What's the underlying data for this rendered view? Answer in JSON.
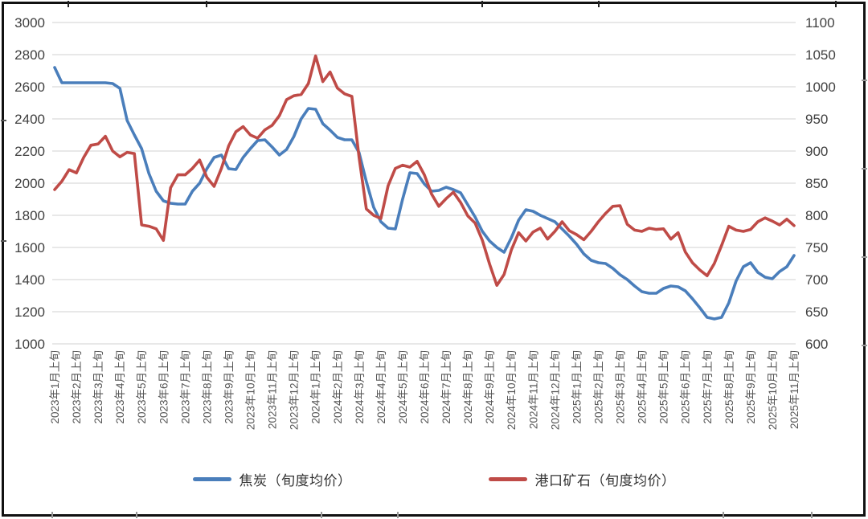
{
  "chart_data": {
    "type": "line",
    "title": "",
    "grid": "horizontal",
    "legend_position": "bottom",
    "points_per_label": 3,
    "x_labels": [
      "2023年1月上旬",
      "2023年2月上旬",
      "2023年3月上旬",
      "2023年4月上旬",
      "2023年5月上旬",
      "2023年6月上旬",
      "2023年7月上旬",
      "2023年8月上旬",
      "2023年9月上旬",
      "2023年10月上旬",
      "2023年11月上旬",
      "2023年12月上旬",
      "2024年1月上旬",
      "2024年2月上旬",
      "2024年3月上旬",
      "2024年4月上旬",
      "2024年5月上旬",
      "2024年6月上旬",
      "2024年7月上旬",
      "2024年8月上旬",
      "2024年9月上旬",
      "2024年10月上旬",
      "2024年11月上旬",
      "2024年12月上旬",
      "2025年1月上旬",
      "2025年2月上旬",
      "2025年3月上旬",
      "2025年4月上旬",
      "2025年5月上旬",
      "2025年6月上旬",
      "2025年7月上旬",
      "2025年8月上旬",
      "2025年9月上旬",
      "2025年10月上旬",
      "2025年11月上旬"
    ],
    "left_axis": {
      "min": 1000,
      "max": 3000,
      "step": 200,
      "ticks": [
        "3000",
        "2800",
        "2600",
        "2400",
        "2200",
        "2000",
        "1800",
        "1600",
        "1400",
        "1200",
        "1000"
      ]
    },
    "right_axis": {
      "min": 600,
      "max": 1100,
      "step": 50,
      "ticks": [
        "1100",
        "1050",
        "1000",
        "950",
        "900",
        "850",
        "800",
        "750",
        "700",
        "650",
        "600"
      ]
    },
    "series": [
      {
        "name": "焦炭（旬度均价）",
        "axis": "left",
        "color": "#4a7ebb",
        "values": [
          2720,
          2625,
          2625,
          2625,
          2625,
          2625,
          2625,
          2625,
          2620,
          2590,
          2390,
          2300,
          2215,
          2060,
          1950,
          1890,
          1875,
          1870,
          1870,
          1950,
          2000,
          2090,
          2160,
          2175,
          2090,
          2085,
          2160,
          2215,
          2265,
          2270,
          2225,
          2175,
          2210,
          2290,
          2400,
          2465,
          2460,
          2370,
          2330,
          2285,
          2270,
          2270,
          2190,
          2010,
          1850,
          1760,
          1720,
          1715,
          1900,
          2065,
          2060,
          1995,
          1950,
          1955,
          1975,
          1960,
          1940,
          1865,
          1790,
          1700,
          1640,
          1600,
          1570,
          1660,
          1770,
          1835,
          1825,
          1800,
          1780,
          1760,
          1715,
          1670,
          1620,
          1560,
          1520,
          1505,
          1500,
          1470,
          1430,
          1400,
          1360,
          1325,
          1315,
          1315,
          1345,
          1360,
          1355,
          1330,
          1280,
          1225,
          1165,
          1155,
          1165,
          1255,
          1390,
          1480,
          1505,
          1445,
          1415,
          1405,
          1450,
          1480,
          1550
        ]
      },
      {
        "name": "港口矿石（旬度均价）",
        "axis": "right",
        "color": "#bf4b47",
        "values": [
          840,
          853,
          871,
          866,
          890,
          909,
          911,
          923,
          900,
          891,
          898,
          896,
          785,
          783,
          779,
          761,
          843,
          863,
          863,
          873,
          886,
          859,
          845,
          873,
          908,
          930,
          938,
          925,
          920,
          933,
          940,
          955,
          980,
          986,
          988,
          1005,
          1048,
          1008,
          1023,
          998,
          989,
          985,
          890,
          810,
          800,
          795,
          846,
          873,
          878,
          875,
          884,
          863,
          833,
          814,
          826,
          836,
          820,
          799,
          788,
          761,
          724,
          691,
          708,
          746,
          773,
          760,
          774,
          780,
          763,
          775,
          790,
          776,
          770,
          762,
          775,
          790,
          803,
          814,
          815,
          786,
          777,
          775,
          780,
          778,
          779,
          763,
          773,
          743,
          726,
          715,
          706,
          725,
          753,
          783,
          777,
          775,
          778,
          790,
          796,
          791,
          785,
          794,
          784
        ]
      }
    ]
  },
  "legend": {
    "item1": "焦炭（旬度均价）",
    "item2": "港口矿石（旬度均价）"
  },
  "colors": {
    "coke_line": "#4a7ebb",
    "ore_line": "#bf4b47",
    "gridline": "#d9d9d9",
    "axis_text": "#404040",
    "x_label_text": "#555555",
    "frame": "#111111"
  }
}
